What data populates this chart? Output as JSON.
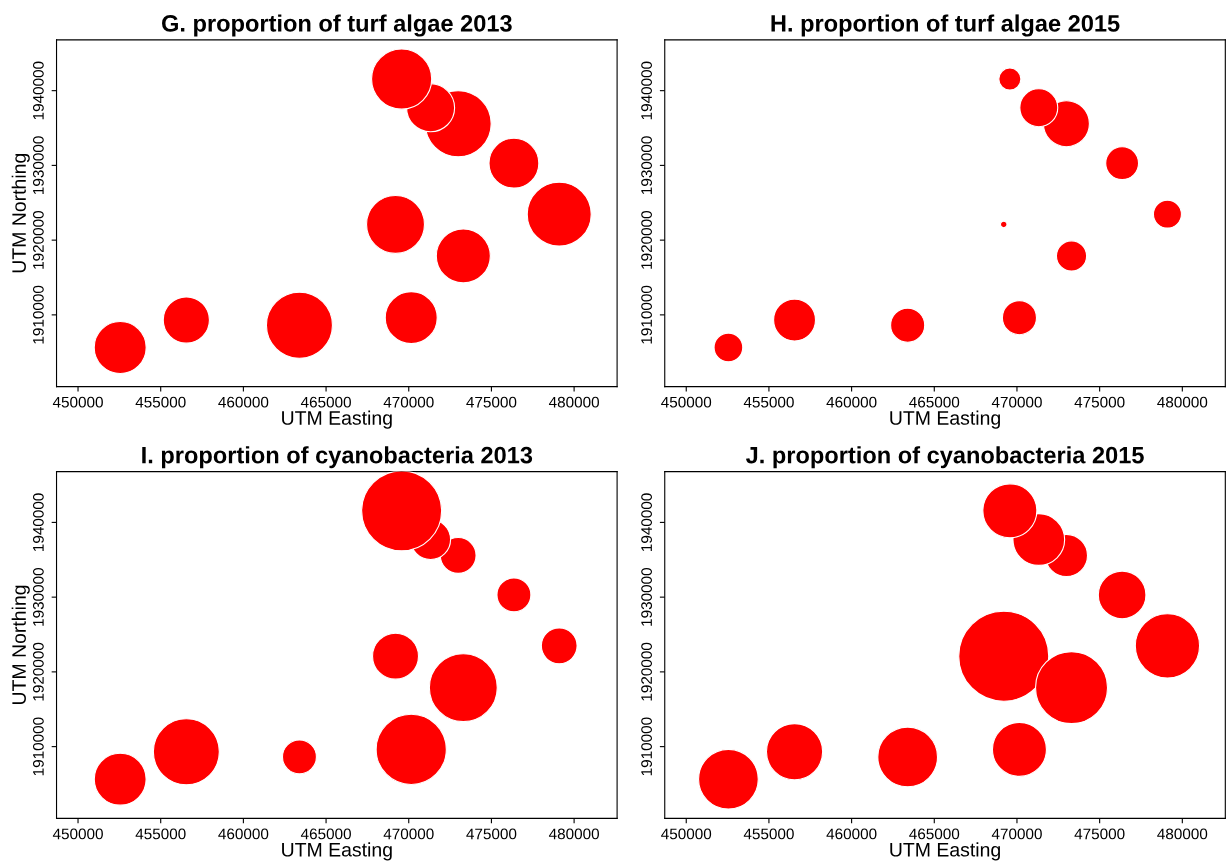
{
  "chart_data": [
    {
      "type": "bubble",
      "title": "G. proportion of turf algae 2013",
      "xlabel": "UTM Easting",
      "ylabel": "UTM Northing",
      "xlim": [
        448700,
        482600
      ],
      "ylim": [
        1900400,
        1946800
      ],
      "xticks": [
        450000,
        455000,
        460000,
        465000,
        470000,
        475000,
        480000
      ],
      "yticks": [
        1910000,
        1920000,
        1930000,
        1940000
      ],
      "grid": false,
      "legend": false,
      "x": [
        452550,
        456550,
        463390,
        470150,
        469200,
        473300,
        479100,
        476360,
        472990,
        471320,
        469570
      ],
      "series": [
        {
          "color": "#ff0000",
          "values": [
            1905640,
            1909310,
            1908620,
            1909630,
            1922100,
            1917890,
            1923480,
            1930300,
            1935580,
            1937710,
            1941550
          ],
          "sizes": [
            0.62,
            0.49,
            1,
            0.62,
            0.77,
            0.67,
            0.94,
            0.57,
            1,
            0.53,
            0.83
          ]
        }
      ]
    },
    {
      "type": "bubble",
      "title": "H. proportion of turf algae 2015",
      "xlabel": "UTM Easting",
      "xlim": [
        448700,
        482600
      ],
      "ylim": [
        1900400,
        1946800
      ],
      "xticks": [
        450000,
        455000,
        460000,
        465000,
        470000,
        475000,
        480000
      ],
      "yticks": [
        1910000,
        1920000,
        1930000,
        1940000
      ],
      "grid": false,
      "legend": false,
      "x": [
        452550,
        456550,
        463390,
        470150,
        469200,
        473300,
        479100,
        476360,
        472990,
        471320,
        469570
      ],
      "series": [
        {
          "color": "#ff0000",
          "values": [
            1905640,
            1909310,
            1908620,
            1909630,
            1922100,
            1917890,
            1923480,
            1930300,
            1935580,
            1937710,
            1941550
          ],
          "sizes": [
            0.39,
            0.83,
            0.55,
            0.55,
            0.02,
            0.43,
            0.37,
            0.51,
            1,
            0.68,
            0.23
          ]
        }
      ]
    },
    {
      "type": "bubble",
      "title": "I. proportion of cyanobacteria 2013",
      "xlabel": "UTM Easting",
      "ylabel": "UTM Northing",
      "xlim": [
        448700,
        482600
      ],
      "ylim": [
        1900400,
        1946800
      ],
      "xticks": [
        450000,
        455000,
        460000,
        465000,
        470000,
        475000,
        480000
      ],
      "yticks": [
        1910000,
        1920000,
        1930000,
        1940000
      ],
      "grid": false,
      "legend": false,
      "x": [
        452550,
        456550,
        463390,
        470150,
        469200,
        473300,
        479100,
        476360,
        472990,
        471320,
        469570
      ],
      "series": [
        {
          "color": "#ff0000",
          "values": [
            1905640,
            1909310,
            1908620,
            1909630,
            1922100,
            1917890,
            1923480,
            1930300,
            1935580,
            1937710,
            1941550
          ],
          "sizes": [
            0.42,
            0.68,
            0.18,
            0.77,
            0.33,
            0.72,
            0.2,
            0.18,
            0.2,
            0.25,
            1
          ]
        }
      ]
    },
    {
      "type": "bubble",
      "title": "J. proportion of cyanobacteria 2015",
      "xlabel": "UTM Easting",
      "xlim": [
        448700,
        482600
      ],
      "ylim": [
        1900400,
        1946800
      ],
      "xticks": [
        450000,
        455000,
        460000,
        465000,
        470000,
        475000,
        480000
      ],
      "yticks": [
        1910000,
        1920000,
        1930000,
        1940000
      ],
      "grid": false,
      "legend": false,
      "x": [
        452550,
        456550,
        463390,
        470150,
        469200,
        473300,
        479100,
        476360,
        472990,
        471320,
        469570
      ],
      "series": [
        {
          "color": "#ff0000",
          "values": [
            1905640,
            1909310,
            1908620,
            1909630,
            1922100,
            1917890,
            1923480,
            1930300,
            1935580,
            1937710,
            1941550
          ],
          "sizes": [
            0.44,
            0.39,
            0.44,
            0.36,
            1,
            0.64,
            0.51,
            0.28,
            0.22,
            0.33,
            0.36
          ]
        }
      ]
    }
  ]
}
